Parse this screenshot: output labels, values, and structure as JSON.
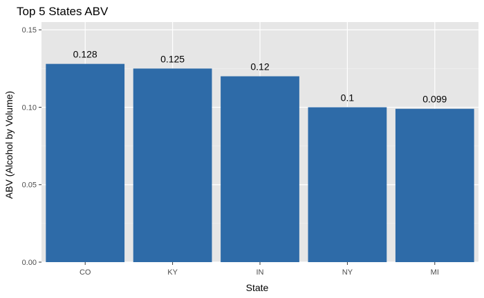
{
  "chart_data": {
    "type": "bar",
    "title": "Top 5 States ABV",
    "xlabel": "State",
    "ylabel": "ABV (Alcohol by Volume)",
    "categories": [
      "CO",
      "KY",
      "IN",
      "NY",
      "MI"
    ],
    "values": [
      0.128,
      0.125,
      0.12,
      0.1,
      0.099
    ],
    "data_labels": [
      "0.128",
      "0.125",
      "0.12",
      "0.1",
      "0.099"
    ],
    "ylim": [
      0,
      0.155
    ],
    "yticks": [
      0,
      0.05,
      0.1,
      0.15
    ],
    "ytick_labels": [
      "0.00",
      "0.05",
      "0.10",
      "0.15"
    ],
    "grid": true,
    "legend": "none",
    "colors": {
      "bar": "#2e6ba8",
      "panel": "#e6e6e6",
      "grid_major": "#ffffff",
      "grid_minor": "#f2f2f2",
      "tick": "#333333"
    }
  }
}
